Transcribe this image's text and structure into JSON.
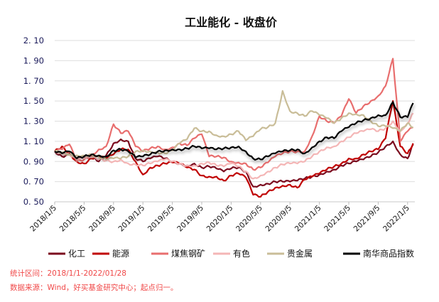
{
  "chart_data": {
    "type": "line",
    "title": "工业能化 - 收盘价",
    "xlabel": "",
    "ylabel": "",
    "x_unit": "months since 2018-01",
    "ylim": [
      0.5,
      2.1
    ],
    "yticks": [
      "0.50",
      "0.70",
      "0.90",
      "1.10",
      "1.30",
      "1.50",
      "1.70",
      "1.90",
      "2.10"
    ],
    "ytick_values": [
      0.5,
      0.7,
      0.9,
      1.1,
      1.3,
      1.5,
      1.7,
      1.9,
      2.1
    ],
    "xticks": [
      {
        "m": 0,
        "label": "2018/1/5"
      },
      {
        "m": 4,
        "label": "2018/5/5"
      },
      {
        "m": 8,
        "label": "2018/9/5"
      },
      {
        "m": 12,
        "label": "2019/1/5"
      },
      {
        "m": 16,
        "label": "2019/5/5"
      },
      {
        "m": 20,
        "label": "2019/9/5"
      },
      {
        "m": 24,
        "label": "2020/1/5"
      },
      {
        "m": 28,
        "label": "2020/5/5"
      },
      {
        "m": 32,
        "label": "2020/9/5"
      },
      {
        "m": 36,
        "label": "2021/1/5"
      },
      {
        "m": 40,
        "label": "2021/5/5"
      },
      {
        "m": 44,
        "label": "2021/9/5"
      },
      {
        "m": 48,
        "label": "2022/1/5"
      }
    ],
    "grid": true,
    "legend_position": "bottom",
    "x": [
      0,
      1,
      2,
      3,
      4,
      5,
      6,
      7,
      8,
      9,
      10,
      11,
      12,
      13,
      14,
      15,
      16,
      17,
      18,
      19,
      20,
      21,
      22,
      23,
      24,
      25,
      26,
      27,
      28,
      29,
      30,
      31,
      32,
      33,
      34,
      35,
      36,
      37,
      38,
      39,
      40,
      41,
      42,
      43,
      44,
      45,
      46,
      47,
      48,
      48.75
    ],
    "series": [
      {
        "name": "化工",
        "color": "#7b0a1e",
        "values": [
          1.0,
          0.95,
          0.97,
          0.92,
          0.93,
          0.95,
          0.9,
          0.96,
          1.08,
          1.12,
          1.1,
          0.93,
          0.9,
          0.93,
          0.95,
          0.93,
          0.9,
          0.88,
          0.86,
          0.88,
          0.84,
          0.85,
          0.83,
          0.8,
          0.83,
          0.84,
          0.8,
          0.65,
          0.67,
          0.68,
          0.7,
          0.7,
          0.7,
          0.71,
          0.73,
          0.75,
          0.77,
          0.8,
          0.82,
          0.86,
          0.88,
          0.9,
          0.92,
          0.95,
          0.99,
          1.05,
          1.1,
          0.97,
          0.93,
          1.07
        ]
      },
      {
        "name": "能源",
        "color": "#c00000",
        "values": [
          1.0,
          1.05,
          0.98,
          0.9,
          0.88,
          0.93,
          0.95,
          0.93,
          0.97,
          1.02,
          1.02,
          0.9,
          0.77,
          0.84,
          0.86,
          0.88,
          0.89,
          0.88,
          0.84,
          0.82,
          0.76,
          0.75,
          0.75,
          0.71,
          0.76,
          0.78,
          0.74,
          0.57,
          0.55,
          0.6,
          0.64,
          0.66,
          0.67,
          0.64,
          0.72,
          0.75,
          0.78,
          0.82,
          0.85,
          0.88,
          0.93,
          0.93,
          0.97,
          1.0,
          1.02,
          1.13,
          1.5,
          1.05,
          0.98,
          1.08
        ]
      },
      {
        "name": "煤焦钢矿",
        "color": "#e86e6e",
        "values": [
          1.0,
          1.02,
          1.07,
          0.9,
          0.92,
          0.96,
          1.02,
          1.05,
          1.27,
          1.18,
          1.2,
          1.05,
          1.0,
          1.03,
          1.05,
          1.02,
          1.04,
          1.08,
          1.06,
          1.13,
          1.17,
          0.95,
          0.95,
          0.94,
          0.9,
          0.89,
          0.88,
          0.82,
          0.84,
          0.89,
          0.95,
          0.98,
          1.0,
          1.0,
          1.0,
          1.15,
          1.35,
          1.3,
          1.28,
          1.35,
          1.52,
          1.38,
          1.45,
          1.5,
          1.55,
          1.65,
          1.92,
          1.1,
          1.2,
          1.24
        ]
      },
      {
        "name": "有色",
        "color": "#f4b6b6",
        "values": [
          1.0,
          0.98,
          0.97,
          0.92,
          0.93,
          0.94,
          0.92,
          0.91,
          0.9,
          0.92,
          0.88,
          0.87,
          0.86,
          0.88,
          0.9,
          0.92,
          0.9,
          0.88,
          0.86,
          0.86,
          0.88,
          0.89,
          0.86,
          0.85,
          0.88,
          0.85,
          0.8,
          0.73,
          0.76,
          0.8,
          0.84,
          0.87,
          0.88,
          0.88,
          0.9,
          0.95,
          1.0,
          1.04,
          1.05,
          1.1,
          1.14,
          1.18,
          1.2,
          1.22,
          1.2,
          1.23,
          1.3,
          1.2,
          1.28,
          1.38
        ]
      },
      {
        "name": "贵金属",
        "color": "#c9bd98",
        "values": [
          1.0,
          0.99,
          0.97,
          0.96,
          0.96,
          0.97,
          0.94,
          0.92,
          0.93,
          0.93,
          0.95,
          1.0,
          1.01,
          1.0,
          0.99,
          0.98,
          1.01,
          1.08,
          1.12,
          1.23,
          1.2,
          1.2,
          1.16,
          1.15,
          1.17,
          1.2,
          1.11,
          1.15,
          1.22,
          1.24,
          1.28,
          1.6,
          1.4,
          1.38,
          1.35,
          1.4,
          1.36,
          1.33,
          1.28,
          1.33,
          1.38,
          1.37,
          1.36,
          1.3,
          1.25,
          1.25,
          1.23,
          1.2,
          1.28,
          1.24
        ]
      },
      {
        "name": "南华商品指数",
        "color": "#000000",
        "values": [
          1.0,
          0.98,
          1.0,
          0.93,
          0.95,
          0.97,
          0.96,
          0.95,
          1.01,
          1.02,
          1.0,
          0.94,
          0.95,
          0.97,
          1.0,
          1.01,
          1.02,
          1.02,
          1.03,
          1.05,
          1.03,
          1.03,
          1.02,
          1.03,
          1.04,
          1.05,
          1.0,
          0.93,
          0.92,
          0.95,
          0.98,
          1.0,
          1.01,
          1.02,
          0.98,
          1.04,
          1.1,
          1.14,
          1.13,
          1.2,
          1.24,
          1.28,
          1.31,
          1.33,
          1.36,
          1.36,
          1.49,
          1.34,
          1.34,
          1.48
        ]
      }
    ]
  },
  "footnotes": {
    "range": "统计区间：2018/1/1-2022/01/28",
    "source": "数据来源：Wind，好买基金研究中心；起点归一。"
  }
}
